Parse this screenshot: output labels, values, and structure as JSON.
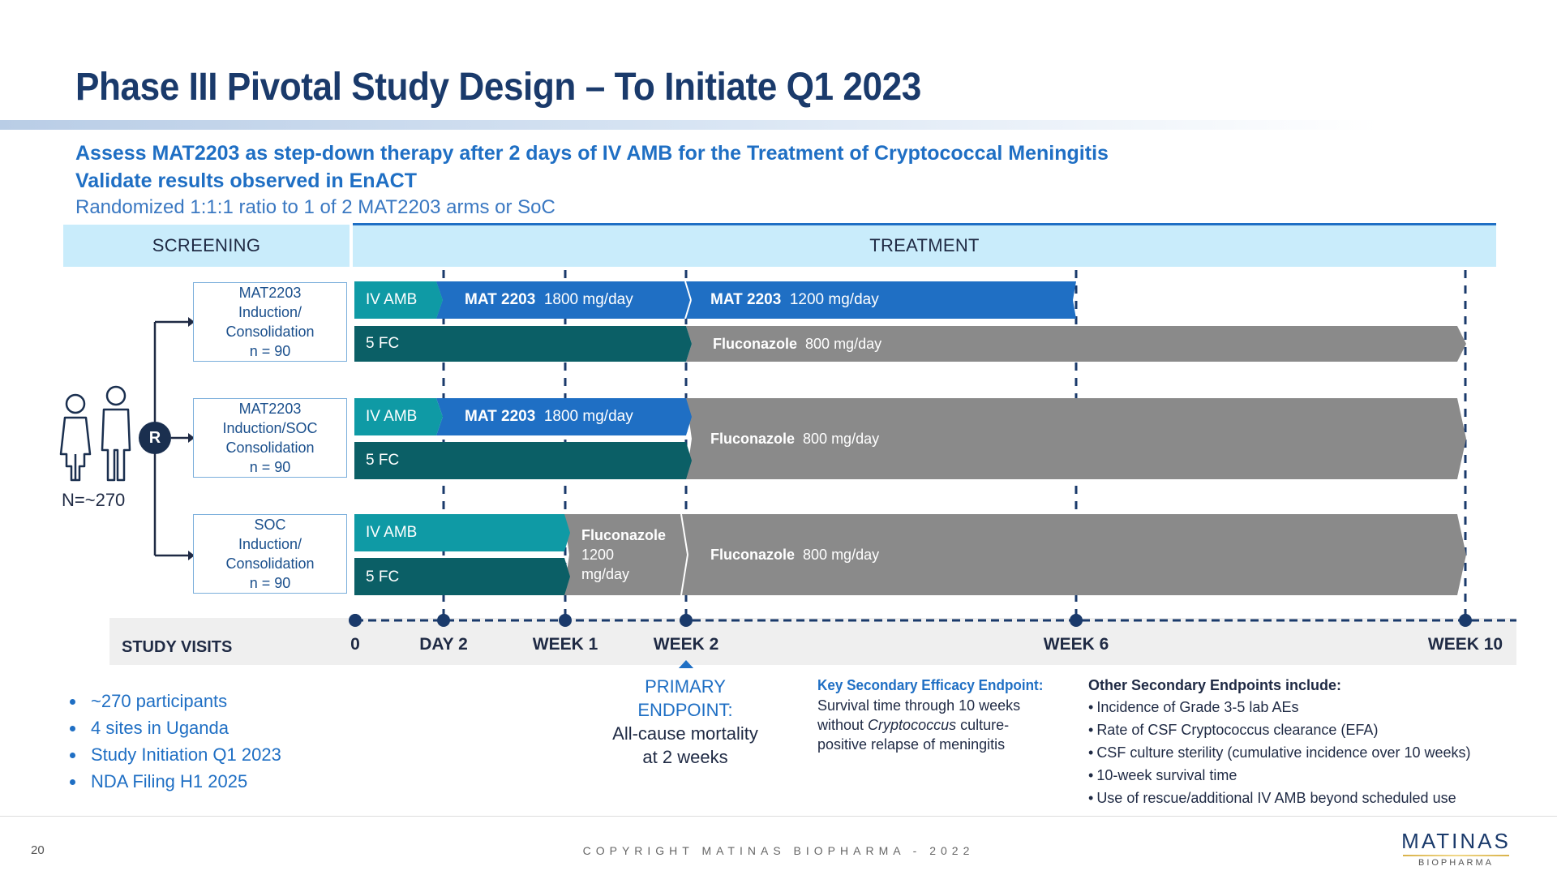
{
  "title": "Phase III Pivotal Study Design – To Initiate Q1 2023",
  "subtitle": {
    "line1": "Assess MAT2203 as step-down therapy after 2 days of IV AMB for the Treatment of Cryptococcal Meningitis",
    "line2": "Validate results observed in EnACT",
    "line3": "Randomized 1:1:1 ratio to 1 of 2 MAT2203 arms or SoC"
  },
  "phases": {
    "screening": "SCREENING",
    "treatment": "TREATMENT"
  },
  "participants": {
    "total_label": "N=~270",
    "randomize_label": "R"
  },
  "arms": [
    {
      "line1": "MAT2203",
      "line2": "Induction/",
      "line3": "Consolidation",
      "n": "n = 90"
    },
    {
      "line1": "MAT2203",
      "line2": "Induction/SOC",
      "line3": "Consolidation",
      "n": "n = 90"
    },
    {
      "line1": "SOC",
      "line2": "Induction/",
      "line3": "Consolidation",
      "n": "n = 90"
    }
  ],
  "bars": {
    "iv_amb": "IV AMB",
    "five_fc": "5 FC",
    "mat_name": "MAT 2203",
    "mat_dose_1800": "1800 mg/day",
    "mat_dose_1200": "1200 mg/day",
    "fluc_name": "Fluconazole",
    "fluc_dose_800": "800 mg/day",
    "fluc_1200_line1": "Fluconazole",
    "fluc_1200_line2": "1200",
    "fluc_1200_line3": "mg/day"
  },
  "study_visits": {
    "label": "STUDY VISITS",
    "ticks": [
      "0",
      "DAY 2",
      "WEEK 1",
      "WEEK 2",
      "WEEK 6",
      "WEEK 10"
    ]
  },
  "bullets": [
    "~270 participants",
    "4 sites in Uganda",
    "Study Initiation Q1 2023",
    "NDA Filing H1 2025"
  ],
  "primary_endpoint": {
    "title_line1": "PRIMARY",
    "title_line2": "ENDPOINT:",
    "text_line1": "All-cause mortality",
    "text_line2": "at 2 weeks"
  },
  "key_secondary": {
    "title": "Key Secondary Efficacy Endpoint:",
    "line1": "Survival time through 10 weeks",
    "line2_pre": "without ",
    "line2_italic": "Cryptococcus",
    "line2_post": " culture-",
    "line3": "positive relapse of meningitis"
  },
  "other_secondary": {
    "title": "Other Secondary Endpoints include:",
    "items": [
      "Incidence of Grade 3-5 lab AEs",
      "Rate of CSF Cryptococcus clearance (EFA)",
      "CSF culture sterility (cumulative incidence over 10 weeks)",
      "10-week survival time",
      "Use of rescue/additional IV AMB beyond scheduled use"
    ]
  },
  "footer": {
    "page_number": "20",
    "copyright": "COPYRIGHT MATINAS BIOPHARMA - 2022",
    "logo_main": "MATINAS",
    "logo_sub": "BIOPHARMA"
  },
  "colors": {
    "iv_amb": "#0f9aa5",
    "five_fc": "#0b5f66",
    "mat": "#1f6fc4",
    "fluconazole": "#8a8a8a",
    "title": "#1a3a6b",
    "accent": "#1f6fc4"
  }
}
